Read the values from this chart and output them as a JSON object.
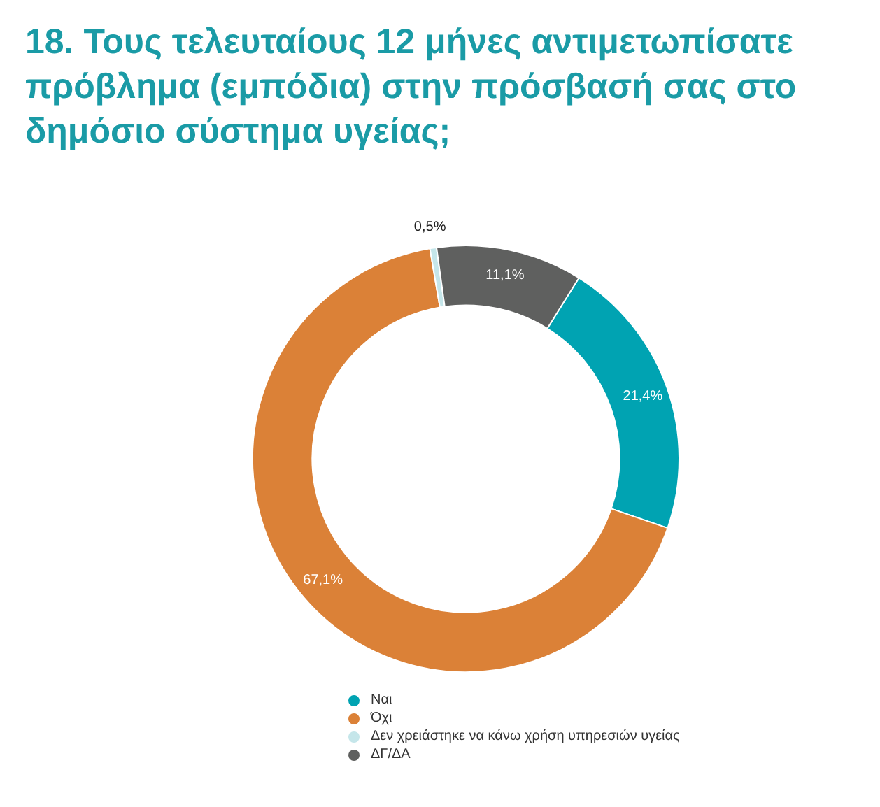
{
  "chart_data": {
    "type": "donut",
    "title": "18. Τους τελευταίους 12 μήνες αντιμετωπίσατε πρόβλημα (εμπόδια) στην πρόσβασή σας στο δημόσιο σύστημα υγείας;",
    "categories": [
      "Ναι",
      "Όχι",
      "Δεν χρειάστηκε να κάνω χρήση υπηρεσιών υγείας",
      "ΔΓ/ΔΑ"
    ],
    "values": [
      21.4,
      67.1,
      0.5,
      11.1
    ],
    "colors": [
      "#00a3b2",
      "#db8137",
      "#c5e6ea",
      "#5f605f"
    ],
    "value_labels": [
      "21,4%",
      "67,1%",
      "0,5%",
      "11,1%"
    ],
    "legend": "bottom"
  }
}
